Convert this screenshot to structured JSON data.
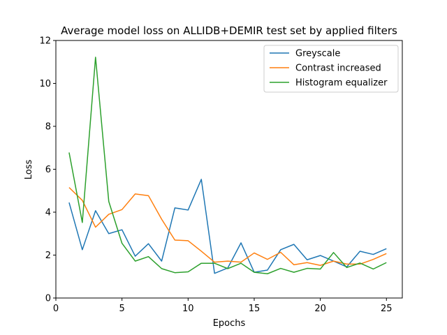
{
  "chart_data": {
    "type": "line",
    "title": "Average model loss on ALLIDB+DEMIR test set by applied filters",
    "xlabel": "Epochs",
    "ylabel": "Loss",
    "xlim": [
      0,
      26.2
    ],
    "ylim": [
      0,
      12
    ],
    "xticks": [
      0,
      5,
      10,
      15,
      20,
      25
    ],
    "yticks": [
      0,
      2,
      4,
      6,
      8,
      10,
      12
    ],
    "grid": false,
    "legend_position": "top-right",
    "x": [
      1,
      2,
      3,
      4,
      5,
      6,
      7,
      8,
      9,
      10,
      11,
      12,
      13,
      14,
      15,
      16,
      17,
      18,
      19,
      20,
      21,
      22,
      23,
      24,
      25
    ],
    "series": [
      {
        "name": "Greyscale",
        "color": "#1f77b4",
        "values": [
          4.45,
          2.25,
          4.07,
          3.0,
          3.18,
          1.95,
          2.53,
          1.72,
          4.2,
          4.1,
          5.53,
          1.15,
          1.4,
          2.57,
          1.2,
          1.3,
          2.25,
          2.5,
          1.78,
          1.98,
          1.72,
          1.45,
          2.18,
          2.03,
          2.3
        ]
      },
      {
        "name": "Contrast increased",
        "color": "#ff7f0e",
        "values": [
          5.15,
          4.55,
          3.3,
          3.9,
          4.12,
          4.85,
          4.77,
          3.67,
          2.7,
          2.67,
          2.18,
          1.67,
          1.72,
          1.67,
          2.1,
          1.8,
          2.13,
          1.55,
          1.65,
          1.52,
          1.72,
          1.58,
          1.58,
          1.8,
          2.07
        ]
      },
      {
        "name": "Histogram equalizer",
        "color": "#2ca02c",
        "values": [
          6.78,
          3.52,
          11.22,
          4.5,
          2.55,
          1.72,
          1.93,
          1.37,
          1.18,
          1.22,
          1.62,
          1.62,
          1.37,
          1.62,
          1.2,
          1.13,
          1.38,
          1.2,
          1.38,
          1.35,
          2.12,
          1.42,
          1.63,
          1.35,
          1.65
        ]
      }
    ]
  }
}
